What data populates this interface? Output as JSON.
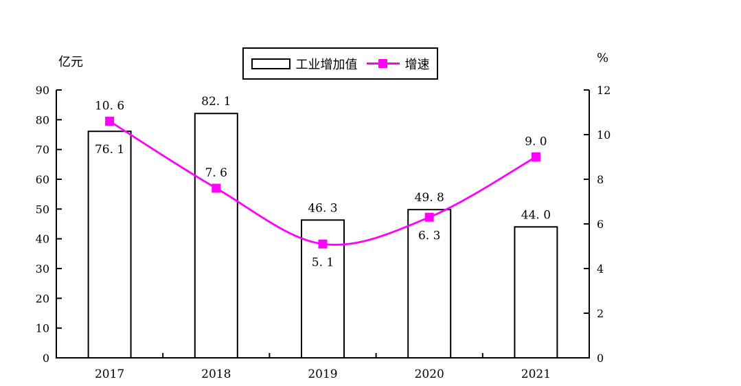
{
  "chart_data": {
    "type": "combo-bar-line",
    "categories": [
      "2017",
      "2018",
      "2019",
      "2020",
      "2021"
    ],
    "series": [
      {
        "name": "工业增加值",
        "type": "bar",
        "axis": "left",
        "values": [
          76.1,
          82.1,
          46.3,
          49.8,
          44.0
        ],
        "labels": [
          "76. 1",
          "82. 1",
          "46. 3",
          "49. 8",
          "44. 0"
        ],
        "label_placement": [
          "inside",
          "above",
          "above",
          "above",
          "above"
        ],
        "fill": "#FFFFFF",
        "stroke": "#000000"
      },
      {
        "name": "增速",
        "type": "line",
        "axis": "right",
        "values": [
          10.6,
          7.6,
          5.1,
          6.3,
          9.0
        ],
        "labels": [
          "10. 6",
          "7. 6",
          "5. 1",
          "6. 3",
          "9. 0"
        ],
        "label_placement": [
          "above",
          "above",
          "below",
          "below",
          "above"
        ],
        "color": "#FF00FF",
        "marker": "square",
        "smooth": true
      }
    ],
    "left_axis": {
      "unit": "亿元",
      "min": 0,
      "max": 90,
      "step": 10,
      "ticks": [
        0,
        10,
        20,
        30,
        40,
        50,
        60,
        70,
        80,
        90
      ]
    },
    "right_axis": {
      "unit": "%",
      "min": 0,
      "max": 12,
      "step": 2,
      "ticks": [
        0,
        2,
        4,
        6,
        8,
        10,
        12
      ]
    },
    "legend": {
      "position": "top-center",
      "bordered": true,
      "entries": [
        "工业增加值",
        "增速"
      ]
    },
    "grid": false,
    "colors": {
      "axis": "#000000",
      "text": "#000000",
      "line_series": "#FF00FF",
      "bar_fill": "#FFFFFF",
      "background": "#FFFFFF"
    }
  }
}
